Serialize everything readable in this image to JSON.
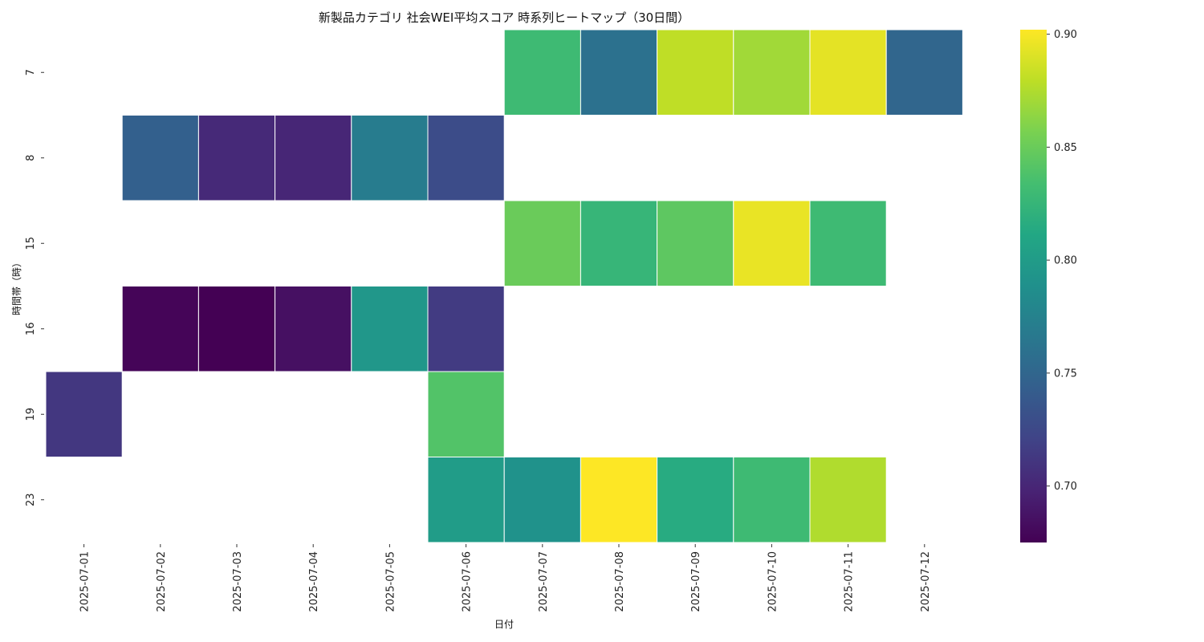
{
  "chart_data": {
    "type": "heatmap",
    "title": "新製品カテゴリ 社会WEI平均スコア 時系列ヒートマップ（30日間）",
    "xlabel": "日付",
    "ylabel": "時間帯（時）",
    "x": [
      "2025-07-01",
      "2025-07-02",
      "2025-07-03",
      "2025-07-04",
      "2025-07-05",
      "2025-07-06",
      "2025-07-07",
      "2025-07-08",
      "2025-07-09",
      "2025-07-10",
      "2025-07-11",
      "2025-07-12"
    ],
    "y": [
      "7",
      "8",
      "15",
      "16",
      "19",
      "23"
    ],
    "z": [
      [
        null,
        null,
        null,
        null,
        null,
        null,
        0.83,
        0.76,
        0.88,
        0.87,
        0.893,
        0.75
      ],
      [
        null,
        0.745,
        0.702,
        0.7,
        0.77,
        0.728,
        null,
        null,
        null,
        null,
        null,
        null
      ],
      [
        null,
        null,
        null,
        null,
        null,
        null,
        0.85,
        0.825,
        0.845,
        0.895,
        0.83,
        null
      ],
      [
        null,
        0.678,
        0.675,
        0.685,
        0.795,
        0.715,
        null,
        null,
        null,
        null,
        null,
        null
      ],
      [
        0.712,
        null,
        null,
        null,
        null,
        0.84,
        null,
        null,
        null,
        null,
        null,
        null
      ],
      [
        null,
        null,
        null,
        null,
        null,
        0.8,
        0.79,
        0.902,
        0.815,
        0.83,
        0.875,
        null
      ]
    ],
    "colorscale": "viridis",
    "zlim": [
      0.675,
      0.902
    ],
    "colorbar_ticks": [
      "0.70",
      "0.75",
      "0.80",
      "0.85",
      "0.90"
    ],
    "colorbar_tick_values": [
      0.7,
      0.75,
      0.8,
      0.85,
      0.9
    ],
    "grid": false
  }
}
